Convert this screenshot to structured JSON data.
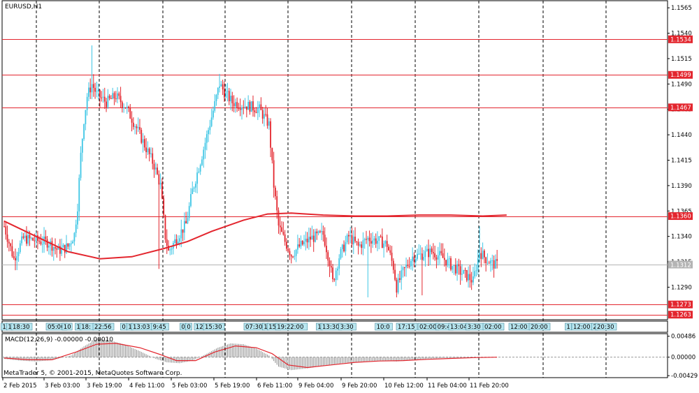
{
  "window": {
    "symbol_label": "EURUSD,H1"
  },
  "colors": {
    "bull": "#3fc6e5",
    "bear": "#e3262e",
    "level": "#e3262e",
    "ma": "#e3262e",
    "grid": "#000000",
    "current": "#b4b4b4",
    "tag_fill": "#b8e6f0"
  },
  "chart_data": [
    {
      "type": "candlestick",
      "title": "EURUSD,H1",
      "ylim": [
        1.1258,
        1.1572
      ],
      "y_ticks": [
        "1.1565",
        "1.1540",
        "1.1515",
        "1.1490",
        "1.1465",
        "1.1440",
        "1.1415",
        "1.1390",
        "1.1365",
        "1.1340",
        "1.1315",
        "1.1290"
      ],
      "x_ticks": [
        "2 Feb 2015",
        "3 Feb 03:00",
        "3 Feb 19:00",
        "4 Feb 11:00",
        "5 Feb 03:00",
        "5 Feb 19:00",
        "6 Feb 11:00",
        "9 Feb 04:00",
        "9 Feb 20:00",
        "10 Feb 12:00",
        "11 Feb 04:00",
        "11 Feb 20:00"
      ],
      "levels": [
        {
          "price": 1.1534,
          "label": "1.1534"
        },
        {
          "price": 1.1499,
          "label": "1.1499"
        },
        {
          "price": 1.1467,
          "label": "1.1467"
        },
        {
          "price": 1.136,
          "label": "1.1360"
        },
        {
          "price": 1.1273,
          "label": "1.1273"
        },
        {
          "price": 1.1263,
          "label": "1.1263"
        }
      ],
      "current_price": {
        "price": 1.1312,
        "label": "1.1312"
      },
      "moving_average": [
        [
          0,
          1.1355
        ],
        [
          20,
          1.134
        ],
        [
          40,
          1.1325
        ],
        [
          60,
          1.1318
        ],
        [
          80,
          1.132
        ],
        [
          100,
          1.1328
        ],
        [
          115,
          1.1335
        ],
        [
          130,
          1.1345
        ],
        [
          150,
          1.1356
        ],
        [
          165,
          1.1362
        ],
        [
          180,
          1.1363
        ],
        [
          200,
          1.1361
        ],
        [
          220,
          1.136
        ],
        [
          240,
          1.136
        ],
        [
          260,
          1.1361
        ],
        [
          280,
          1.1361
        ],
        [
          300,
          1.136
        ],
        [
          315,
          1.1361
        ]
      ],
      "candle_anchors": [
        [
          0,
          1.135
        ],
        [
          6,
          1.1318
        ],
        [
          12,
          1.1338
        ],
        [
          20,
          1.1336
        ],
        [
          28,
          1.1334
        ],
        [
          34,
          1.1326
        ],
        [
          40,
          1.133
        ],
        [
          44,
          1.1342
        ],
        [
          46,
          1.137
        ],
        [
          48,
          1.142
        ],
        [
          50,
          1.1455
        ],
        [
          52,
          1.1478
        ],
        [
          55,
          1.149
        ],
        [
          58,
          1.148
        ],
        [
          64,
          1.1472
        ],
        [
          70,
          1.1478
        ],
        [
          76,
          1.1468
        ],
        [
          82,
          1.145
        ],
        [
          88,
          1.143
        ],
        [
          94,
          1.141
        ],
        [
          98,
          1.139
        ],
        [
          101,
          1.134
        ],
        [
          103,
          1.1325
        ],
        [
          108,
          1.1338
        ],
        [
          114,
          1.1352
        ],
        [
          118,
          1.1385
        ],
        [
          124,
          1.142
        ],
        [
          128,
          1.1445
        ],
        [
          132,
          1.147
        ],
        [
          135,
          1.149
        ],
        [
          138,
          1.1482
        ],
        [
          143,
          1.1472
        ],
        [
          148,
          1.147
        ],
        [
          154,
          1.1468
        ],
        [
          160,
          1.1465
        ],
        [
          166,
          1.145
        ],
        [
          169,
          1.139
        ],
        [
          172,
          1.135
        ],
        [
          176,
          1.1335
        ],
        [
          180,
          1.1322
        ],
        [
          185,
          1.133
        ],
        [
          192,
          1.1338
        ],
        [
          200,
          1.1342
        ],
        [
          204,
          1.1315
        ],
        [
          206,
          1.1295
        ],
        [
          210,
          1.132
        ],
        [
          216,
          1.134
        ],
        [
          222,
          1.133
        ],
        [
          228,
          1.1338
        ],
        [
          234,
          1.1336
        ],
        [
          240,
          1.1332
        ],
        [
          244,
          1.131
        ],
        [
          246,
          1.129
        ],
        [
          250,
          1.1305
        ],
        [
          256,
          1.132
        ],
        [
          262,
          1.1322
        ],
        [
          268,
          1.1325
        ],
        [
          274,
          1.132
        ],
        [
          280,
          1.1312
        ],
        [
          286,
          1.1305
        ],
        [
          291,
          1.13
        ],
        [
          294,
          1.1296
        ],
        [
          298,
          1.1325
        ],
        [
          302,
          1.1318
        ],
        [
          306,
          1.1313
        ],
        [
          309,
          1.1312
        ]
      ]
    },
    {
      "type": "histogram",
      "title": "MACD(12,26,9) -0.00000 -0.00010",
      "ylim": [
        -0.00475,
        0.00545
      ],
      "y_ticks": [
        "0.00486",
        "0.00000",
        "-0.00429"
      ],
      "values": [
        [
          0,
          -0.0004
        ],
        [
          10,
          -0.0008
        ],
        [
          20,
          -0.001
        ],
        [
          30,
          -0.0007
        ],
        [
          42,
          0.0004
        ],
        [
          50,
          0.0025
        ],
        [
          58,
          0.0042
        ],
        [
          65,
          0.004
        ],
        [
          75,
          0.003
        ],
        [
          85,
          0.0014
        ],
        [
          95,
          -0.0004
        ],
        [
          102,
          -0.0012
        ],
        [
          110,
          -0.0014
        ],
        [
          118,
          -0.0008
        ],
        [
          126,
          0.0006
        ],
        [
          134,
          0.0022
        ],
        [
          142,
          0.0032
        ],
        [
          150,
          0.003
        ],
        [
          158,
          0.002
        ],
        [
          166,
          0.0004
        ],
        [
          172,
          -0.0022
        ],
        [
          180,
          -0.003
        ],
        [
          190,
          -0.0026
        ],
        [
          200,
          -0.002
        ],
        [
          212,
          -0.0014
        ],
        [
          224,
          -0.001
        ],
        [
          236,
          -0.0008
        ],
        [
          246,
          -0.001
        ],
        [
          256,
          -0.0006
        ],
        [
          266,
          -0.0004
        ],
        [
          276,
          -0.0002
        ],
        [
          286,
          -0.0002
        ],
        [
          296,
          -0.0001
        ],
        [
          309,
          0.0
        ]
      ],
      "signal": [
        [
          0,
          -0.0002
        ],
        [
          15,
          -0.0006
        ],
        [
          30,
          -0.0006
        ],
        [
          45,
          0.0012
        ],
        [
          58,
          0.003
        ],
        [
          70,
          0.0032
        ],
        [
          85,
          0.0022
        ],
        [
          98,
          0.0006
        ],
        [
          108,
          -0.0008
        ],
        [
          120,
          -0.0008
        ],
        [
          132,
          0.0012
        ],
        [
          145,
          0.0026
        ],
        [
          158,
          0.0022
        ],
        [
          168,
          0.0008
        ],
        [
          178,
          -0.0018
        ],
        [
          190,
          -0.0024
        ],
        [
          205,
          -0.0018
        ],
        [
          220,
          -0.0012
        ],
        [
          235,
          -0.0009
        ],
        [
          250,
          -0.0008
        ],
        [
          265,
          -0.0005
        ],
        [
          280,
          -0.0003
        ],
        [
          295,
          -0.0001
        ],
        [
          309,
          0.0
        ]
      ]
    }
  ],
  "trade_tags": [
    {
      "x": 6,
      "text": "1"
    },
    {
      "x": 14,
      "text": "1"
    },
    {
      "x": 31,
      "text": "18:30"
    },
    {
      "x": 81,
      "text": "05:00"
    },
    {
      "x": 96,
      "text": "10"
    },
    {
      "x": 112,
      "text": "1"
    },
    {
      "x": 124,
      "text": "18:"
    },
    {
      "x": 148,
      "text": "22:56"
    },
    {
      "x": 177,
      "text": "0"
    },
    {
      "x": 186,
      "text": "1"
    },
    {
      "x": 203,
      "text": "13:03"
    },
    {
      "x": 229,
      "text": "9:45"
    },
    {
      "x": 262,
      "text": "0"
    },
    {
      "x": 270,
      "text": "0"
    },
    {
      "x": 285,
      "text": "12"
    },
    {
      "x": 306,
      "text": "15:30"
    },
    {
      "x": 364,
      "text": "07:30"
    },
    {
      "x": 380,
      "text": "1"
    },
    {
      "x": 392,
      "text": "15:"
    },
    {
      "x": 417,
      "text": "19:22:00"
    },
    {
      "x": 457,
      "text": "1"
    },
    {
      "x": 474,
      "text": "13:30"
    },
    {
      "x": 497,
      "text": "3:30"
    },
    {
      "x": 549,
      "text": "10:0"
    },
    {
      "x": 582,
      "text": "17:15"
    },
    {
      "x": 613,
      "text": "02:00"
    },
    {
      "x": 636,
      "text": "09:4"
    },
    {
      "x": 657,
      "text": "13:04"
    },
    {
      "x": 679,
      "text": "3:30"
    },
    {
      "x": 706,
      "text": "02:00"
    },
    {
      "x": 743,
      "text": "12:00"
    },
    {
      "x": 772,
      "text": "20:00"
    },
    {
      "x": 813,
      "text": "1"
    },
    {
      "x": 833,
      "text": "12:00"
    },
    {
      "x": 851,
      "text": "2"
    },
    {
      "x": 867,
      "text": "20:30"
    }
  ],
  "footer": {
    "copyright": "MetaTrader 5, © 2001-2015, MetaQuotes Software Corp."
  }
}
